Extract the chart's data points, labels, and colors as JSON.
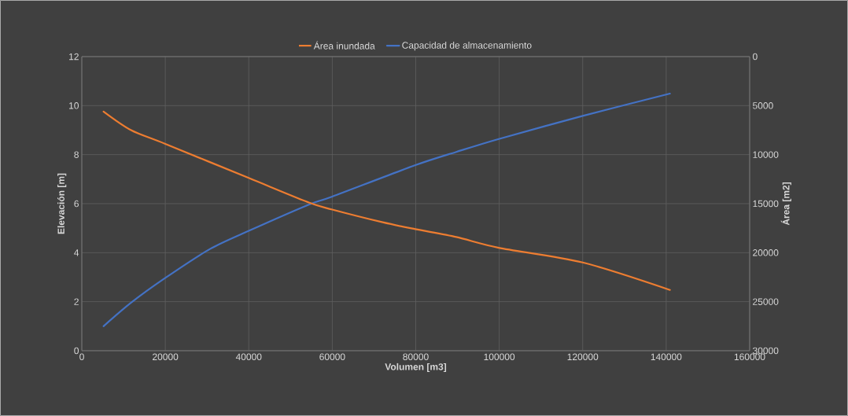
{
  "chart_data": {
    "type": "line",
    "xlabel": "Volumen [m3]",
    "ylabel": "Elevación [m]",
    "y2label": "Área [m2]",
    "xlim": [
      0,
      160000
    ],
    "xticks": [
      0,
      20000,
      40000,
      60000,
      80000,
      100000,
      120000,
      140000,
      160000
    ],
    "ylim": [
      0,
      12
    ],
    "yticks": [
      0,
      2,
      4,
      6,
      8,
      10,
      12
    ],
    "y2lim": [
      30000,
      0
    ],
    "y2ticks": [
      0,
      5000,
      10000,
      15000,
      20000,
      25000,
      30000
    ],
    "grid": true,
    "legend": "top",
    "series": [
      {
        "name": "Área inundada",
        "color": "#ed7d31",
        "axis": "y2",
        "x": [
          5200,
          11800,
          20000,
          40100,
          54500,
          60000,
          72100,
          79900,
          89700,
          99900,
          120000,
          140900
        ],
        "values": [
          5600,
          7500,
          8900,
          12400,
          14900,
          15600,
          16900,
          17600,
          18400,
          19500,
          21000,
          23800
        ]
      },
      {
        "name": "Capacidad de almacenamiento",
        "color": "#4472c4",
        "x": [
          5200,
          11800,
          20000,
          30700,
          40100,
          54500,
          60000,
          79900,
          89700,
          99900,
          120000,
          140900
        ],
        "values": [
          1.0,
          1.96,
          2.97,
          4.15,
          4.9,
          5.97,
          6.29,
          7.57,
          8.11,
          8.64,
          9.58,
          10.49
        ]
      }
    ]
  }
}
